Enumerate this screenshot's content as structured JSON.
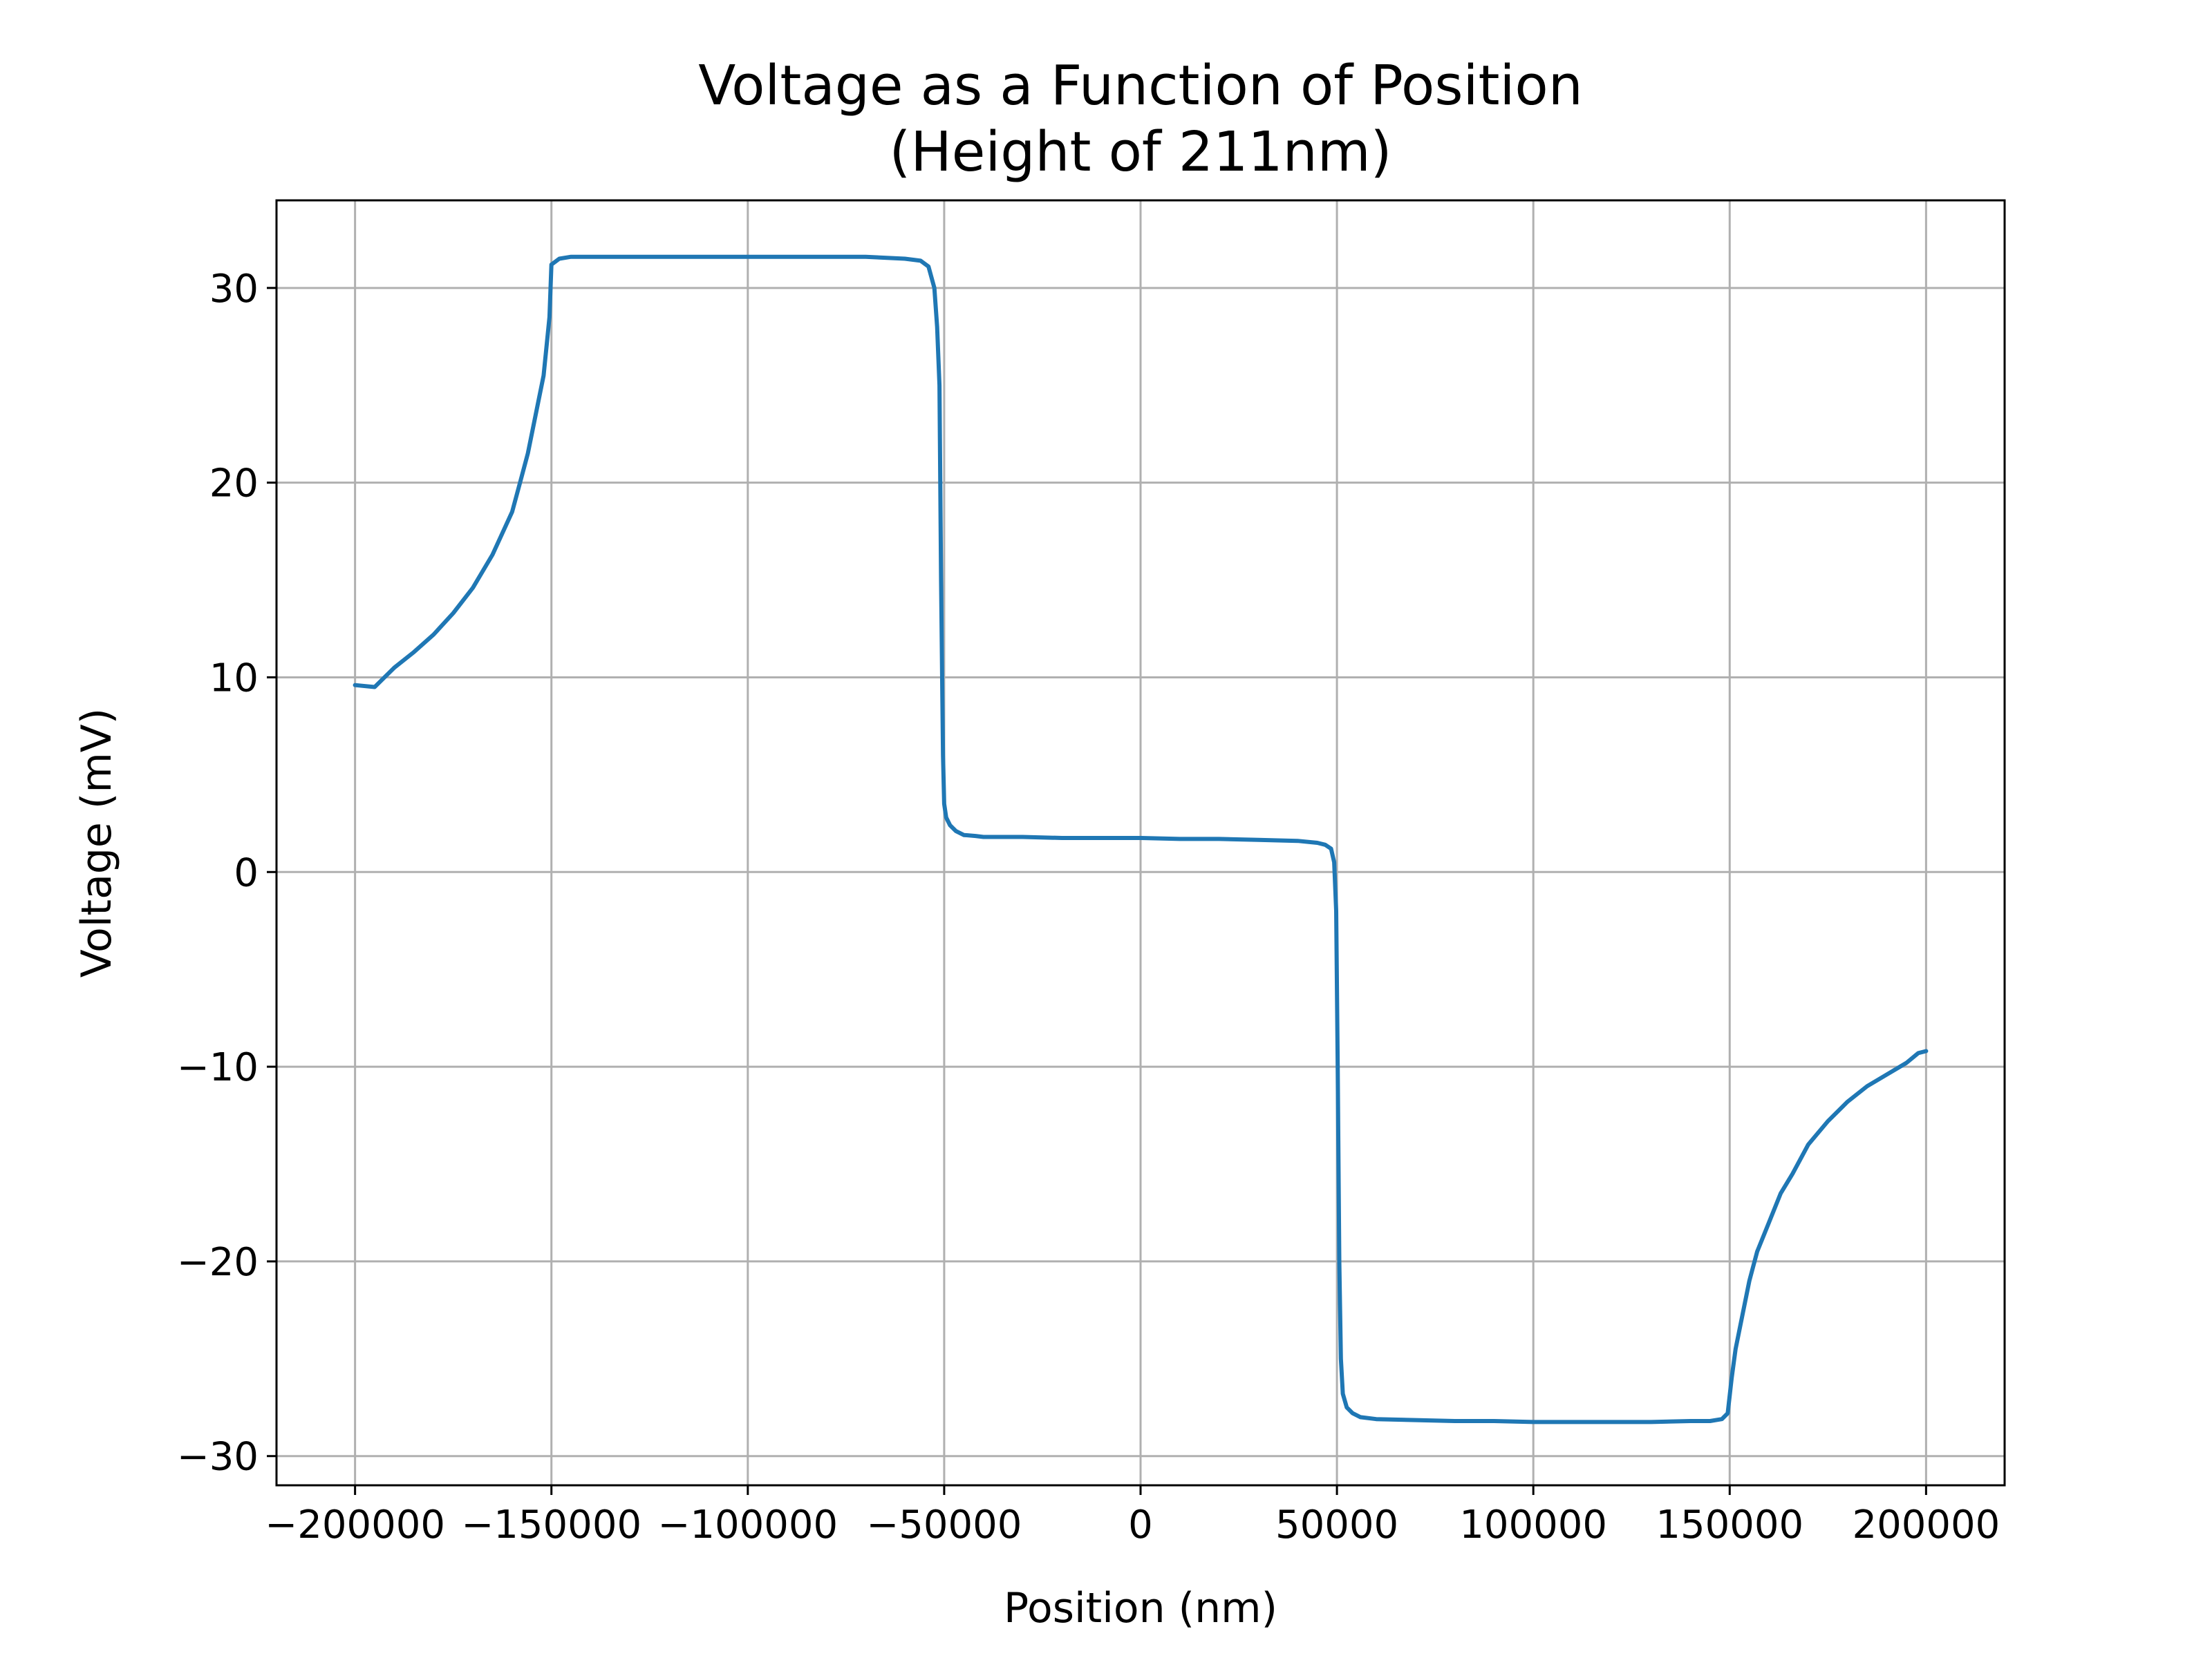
{
  "chart_data": {
    "type": "line",
    "title": "Voltage as a Function of Position",
    "subtitle": "(Height of 211nm)",
    "xlabel": "Position (nm)",
    "ylabel": "Voltage (mV)",
    "xlim": [
      -220000,
      220000
    ],
    "ylim": [
      -31.5,
      34.5
    ],
    "grid": true,
    "x_ticks": [
      -200000,
      -150000,
      -100000,
      -50000,
      0,
      50000,
      100000,
      150000,
      200000
    ],
    "x_tick_labels": [
      "−200000",
      "−150000",
      "−100000",
      "−50000",
      "0",
      "50000",
      "100000",
      "150000",
      "200000"
    ],
    "y_ticks": [
      -30,
      -20,
      -10,
      0,
      10,
      20,
      30
    ],
    "y_tick_labels": [
      "−30",
      "−20",
      "−10",
      "0",
      "10",
      "20",
      "30"
    ],
    "line_color": "#1f77b4",
    "series": [
      {
        "x": [
          -200000,
          -195000,
          -190000,
          -185000,
          -180000,
          -175000,
          -170000,
          -165000,
          -160000,
          -158000,
          -156000,
          -154000,
          -152000,
          -150500,
          -150000,
          -148000,
          -145000,
          -140000,
          -130000,
          -120000,
          -110000,
          -100000,
          -90000,
          -80000,
          -70000,
          -60000,
          -56000,
          -54000,
          -52500,
          -51800,
          -51200,
          -50800,
          -50300,
          -50000,
          -49500,
          -48500,
          -47000,
          -45000,
          -42000,
          -40000,
          -30000,
          -20000,
          -10000,
          0,
          10000,
          20000,
          30000,
          40000,
          45000,
          47000,
          48500,
          49300,
          49800,
          50200,
          50600,
          51000,
          51500,
          52500,
          54000,
          56000,
          60000,
          70000,
          80000,
          90000,
          100000,
          110000,
          120000,
          130000,
          140000,
          145000,
          148000,
          149500,
          150500,
          151500,
          153000,
          155000,
          157000,
          160000,
          163000,
          166000,
          170000,
          175000,
          180000,
          185000,
          190000,
          195000,
          198000,
          200000
        ],
        "y": [
          9.6,
          9.5,
          10.5,
          11.3,
          12.2,
          13.3,
          14.6,
          16.3,
          18.5,
          20.0,
          21.5,
          23.5,
          25.5,
          28.5,
          31.2,
          31.5,
          31.6,
          31.6,
          31.6,
          31.6,
          31.6,
          31.6,
          31.6,
          31.6,
          31.6,
          31.5,
          31.4,
          31.1,
          30.0,
          28.0,
          25.0,
          15.0,
          6.0,
          3.5,
          2.8,
          2.4,
          2.1,
          1.9,
          1.85,
          1.8,
          1.8,
          1.75,
          1.75,
          1.75,
          1.7,
          1.7,
          1.65,
          1.6,
          1.5,
          1.4,
          1.2,
          0.5,
          -2.0,
          -10.0,
          -20.0,
          -25.0,
          -26.8,
          -27.5,
          -27.8,
          -28.0,
          -28.1,
          -28.15,
          -28.2,
          -28.2,
          -28.25,
          -28.25,
          -28.25,
          -28.25,
          -28.2,
          -28.2,
          -28.1,
          -27.8,
          -26.0,
          -24.5,
          -23.0,
          -21.0,
          -19.5,
          -18.0,
          -16.5,
          -15.5,
          -14.0,
          -12.8,
          -11.8,
          -11.0,
          -10.4,
          -9.8,
          -9.3,
          -9.2
        ]
      }
    ]
  }
}
